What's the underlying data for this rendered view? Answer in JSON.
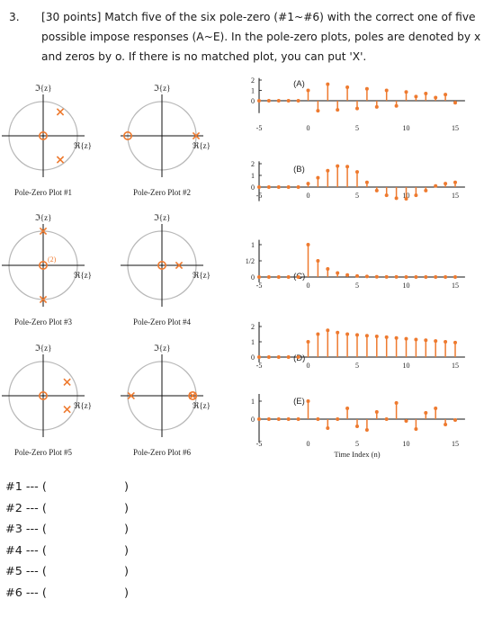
{
  "question": {
    "number": "3.",
    "line1": "[30 points] Match five of the six pole-zero (#1~#6) with the correct one of five",
    "line2": "possible impose responses (A~E). In the pole-zero plots, poles are denoted by x",
    "line3": "and zeros by o. If there is no matched plot, you can put 'X'."
  },
  "pz_plots": [
    {
      "id": 1,
      "caption": "Pole-Zero Plot #1",
      "im_label": "ℑ{z}",
      "re_label": "ℜ{z}",
      "poles": [
        [
          0.5,
          0.7
        ],
        [
          0.5,
          -0.7
        ]
      ],
      "zeros": [
        [
          0,
          0
        ]
      ],
      "order_label": ""
    },
    {
      "id": 2,
      "caption": "Pole-Zero Plot #2",
      "im_label": "ℑ{z}",
      "re_label": "ℜ{z}",
      "poles": [
        [
          1,
          0
        ]
      ],
      "zeros": [
        [
          -1,
          0
        ]
      ],
      "order_label": ""
    },
    {
      "id": 3,
      "caption": "Pole-Zero Plot #3",
      "im_label": "ℑ{z}",
      "re_label": "ℜ{z}",
      "poles": [
        [
          0,
          1
        ],
        [
          0,
          -1
        ]
      ],
      "zeros": [
        [
          0,
          0
        ]
      ],
      "order_label": "(2)"
    },
    {
      "id": 4,
      "caption": "Pole-Zero Plot #4",
      "im_label": "ℑ{z}",
      "re_label": "ℜ{z}",
      "poles": [
        [
          0.5,
          0
        ]
      ],
      "zeros": [
        [
          0,
          0
        ]
      ],
      "order_label": ""
    },
    {
      "id": 5,
      "caption": "Pole-Zero Plot #5",
      "im_label": "ℑ{z}",
      "re_label": "ℜ{z}",
      "poles": [
        [
          0.7,
          0.4
        ],
        [
          0.7,
          -0.4
        ]
      ],
      "zeros": [
        [
          0,
          0
        ]
      ],
      "order_label": ""
    },
    {
      "id": 6,
      "caption": "Pole-Zero Plot #6",
      "im_label": "ℑ{z}",
      "re_label": "ℜ{z}",
      "poles": [
        [
          -0.9,
          0
        ],
        [
          0.9,
          0
        ]
      ],
      "zeros": [
        [
          0.9,
          0
        ]
      ],
      "order_label": ""
    }
  ],
  "chart_data": [
    {
      "type": "stem",
      "label": "(A)",
      "xlim": [
        -5,
        16
      ],
      "ylim": [
        -1.2,
        2.2
      ],
      "y_ticks": [
        "0",
        "1",
        "2"
      ],
      "x_ticks": [
        -5,
        0,
        5,
        10,
        15
      ],
      "x": [
        -5,
        -4,
        -3,
        -2,
        -1,
        0,
        1,
        2,
        3,
        4,
        5,
        6,
        7,
        8,
        9,
        10,
        11,
        12,
        13,
        14,
        15
      ],
      "values": [
        0,
        0,
        0,
        0,
        0,
        1,
        -0.97,
        1.6,
        -0.88,
        1.3,
        -0.75,
        1.15,
        -0.6,
        1.0,
        -0.5,
        0.85,
        0.4,
        0.7,
        0.3,
        0.6,
        -0.2
      ]
    },
    {
      "type": "stem",
      "label": "(B)",
      "xlim": [
        -5,
        16
      ],
      "ylim": [
        -1.2,
        2.2
      ],
      "y_ticks": [
        "0",
        "1",
        "2"
      ],
      "x_ticks": [
        -5,
        0,
        5,
        10,
        15
      ],
      "x": [
        -5,
        -4,
        -3,
        -2,
        -1,
        0,
        1,
        2,
        3,
        4,
        5,
        6,
        7,
        8,
        9,
        10,
        11,
        12,
        13,
        14,
        15
      ],
      "values": [
        0,
        0,
        0,
        0,
        0,
        0.3,
        0.8,
        1.4,
        1.8,
        1.75,
        1.3,
        0.4,
        -0.3,
        -0.7,
        -0.95,
        -1.0,
        -0.7,
        -0.3,
        0.1,
        0.3,
        0.4
      ]
    },
    {
      "type": "stem",
      "label": "(C)",
      "xlim": [
        -5,
        16
      ],
      "ylim": [
        -0.05,
        1.15
      ],
      "y_ticks": [
        "0",
        "1/2",
        "1"
      ],
      "x_ticks": [
        -5,
        0,
        5,
        10,
        15
      ],
      "x": [
        -5,
        -4,
        -3,
        -2,
        -1,
        0,
        1,
        2,
        3,
        4,
        5,
        6,
        7,
        8,
        9,
        10,
        11,
        12,
        13,
        14,
        15
      ],
      "values": [
        0,
        0,
        0,
        0,
        0,
        1,
        0.5,
        0.25,
        0.125,
        0.0625,
        0.031,
        0.016,
        0.008,
        0.004,
        0.002,
        0.001,
        0,
        0,
        0,
        0,
        0
      ]
    },
    {
      "type": "stem",
      "label": "(D)",
      "xlim": [
        -5,
        16
      ],
      "ylim": [
        -0.15,
        2.3
      ],
      "y_ticks": [
        "0",
        "1",
        "2"
      ],
      "x_ticks": [
        -5,
        0,
        5,
        10,
        15
      ],
      "x": [
        -5,
        -4,
        -3,
        -2,
        -1,
        0,
        1,
        2,
        3,
        4,
        5,
        6,
        7,
        8,
        9,
        10,
        11,
        12,
        13,
        14,
        15
      ],
      "values": [
        0,
        0,
        0,
        0,
        0,
        1,
        1.5,
        1.75,
        1.6,
        1.5,
        1.45,
        1.4,
        1.35,
        1.3,
        1.25,
        1.2,
        1.15,
        1.1,
        1.05,
        1.0,
        0.95
      ]
    },
    {
      "type": "stem",
      "label": "(E)",
      "xlim": [
        -5,
        16
      ],
      "ylim": [
        -1.3,
        1.4
      ],
      "y_ticks": [
        "0",
        "1"
      ],
      "x_ticks": [
        -5,
        0,
        5,
        10,
        15
      ],
      "xlabel": "Time Index (n)",
      "x": [
        -5,
        -4,
        -3,
        -2,
        -1,
        0,
        1,
        2,
        3,
        4,
        5,
        6,
        7,
        8,
        9,
        10,
        11,
        12,
        13,
        14,
        15
      ],
      "values": [
        0,
        0,
        0,
        0,
        0,
        1,
        0,
        -0.5,
        0,
        0.6,
        -0.4,
        -0.6,
        0.4,
        0,
        0.9,
        -0.1,
        -0.55,
        0.35,
        0.6,
        -0.3,
        -0.05
      ]
    }
  ],
  "answers": [
    {
      "label": "#1 --- (",
      "value": "",
      "close": ")"
    },
    {
      "label": "#2 --- (",
      "value": "",
      "close": ")"
    },
    {
      "label": "#3 --- (",
      "value": "",
      "close": ")"
    },
    {
      "label": "#4 --- (",
      "value": "",
      "close": ")"
    },
    {
      "label": "#5 --- (",
      "value": "",
      "close": ")"
    },
    {
      "label": "#6 --- (",
      "value": "",
      "close": ")"
    }
  ],
  "colors": {
    "marker": "#ee7a2f",
    "axis": "#111111",
    "circle": "#b8b8b8"
  }
}
